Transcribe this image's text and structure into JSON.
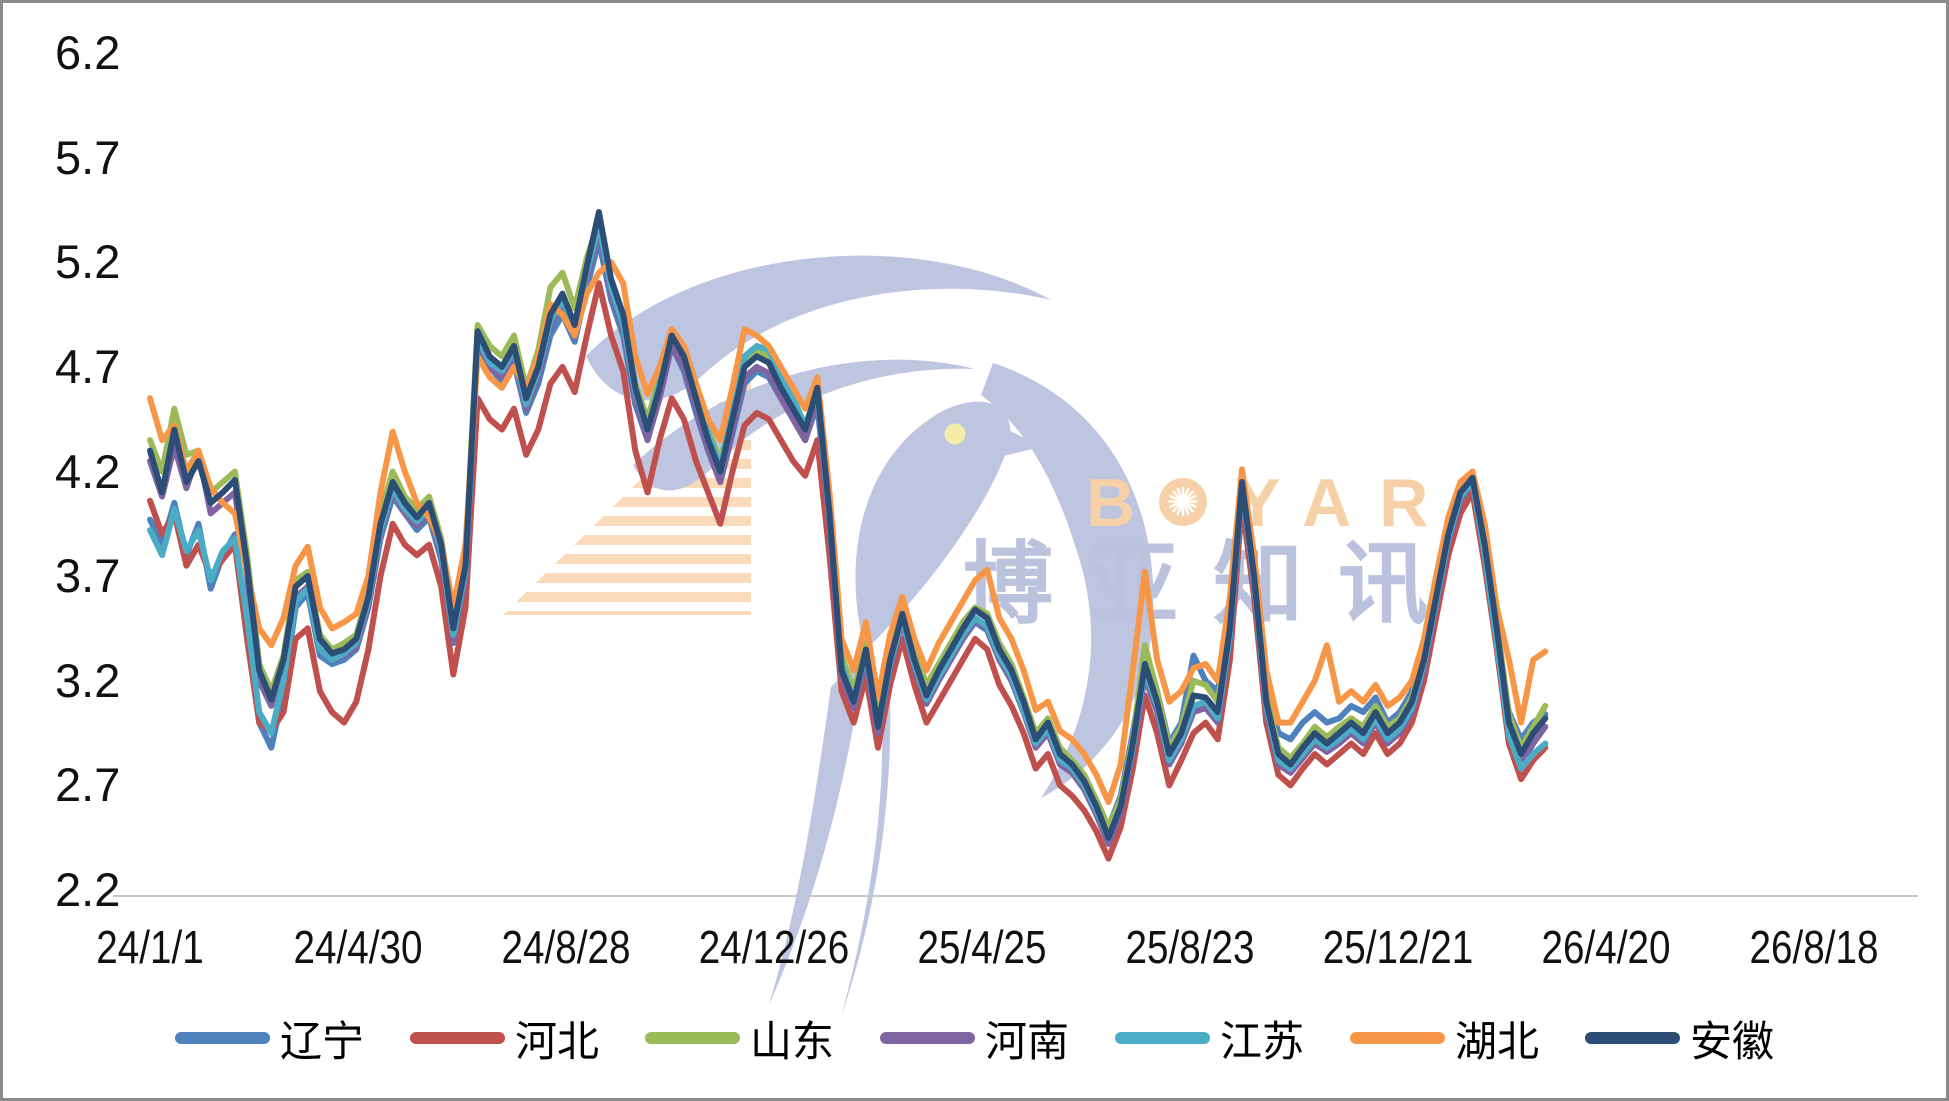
{
  "watermark": {
    "brand_b": "B",
    "brand_yar": "YAR",
    "brand_cn": "博亚知讯",
    "brand_color": "#F6CD9F",
    "cn_color": "#B3BCDA",
    "dove_color": "#B7BFDD",
    "eye_color": "#F2EC9E",
    "stripe_color": "#F8CFA3"
  },
  "axis": {
    "line_color": "#C6C6C6",
    "text_color": "#111111"
  },
  "chart_data": {
    "type": "line",
    "title": "",
    "xlabel": "",
    "ylabel": "",
    "grid": false,
    "legend_position": "bottom",
    "ylim": [
      2.2,
      6.2
    ],
    "y_ticks": [
      6.2,
      5.7,
      5.2,
      4.7,
      4.2,
      3.7,
      3.2,
      2.7,
      2.2
    ],
    "x_tick_labels": [
      "24/1/1",
      "24/4/30",
      "24/8/28",
      "24/12/26",
      "25/4/25",
      "25/8/23",
      "25/12/21",
      "26/4/20",
      "26/8/18"
    ],
    "x_tick_interval_days": 120,
    "x_axis_total_days": 960,
    "sample_interval_days": 7,
    "series_start_date": "24/1/1",
    "series": [
      {
        "name": "辽宁",
        "color": "#4F81BD",
        "values": [
          3.97,
          3.85,
          4.05,
          3.8,
          3.95,
          3.64,
          3.8,
          3.9,
          3.45,
          3.0,
          2.88,
          3.15,
          3.55,
          3.62,
          3.32,
          3.28,
          3.3,
          3.35,
          3.55,
          3.88,
          4.08,
          4.0,
          3.92,
          3.98,
          3.78,
          3.38,
          3.7,
          4.8,
          4.7,
          4.63,
          4.72,
          4.48,
          4.62,
          4.85,
          4.95,
          4.82,
          5.08,
          5.3,
          5.02,
          4.85,
          4.52,
          4.35,
          4.64,
          4.8,
          4.68,
          4.48,
          4.3,
          4.15,
          4.38,
          4.62,
          4.68,
          4.65,
          4.55,
          4.45,
          4.35,
          4.52,
          3.95,
          3.3,
          3.12,
          3.32,
          3.0,
          3.28,
          3.48,
          3.26,
          3.1,
          3.22,
          3.3,
          3.4,
          3.48,
          3.44,
          3.3,
          3.2,
          3.05,
          2.9,
          2.96,
          2.82,
          2.78,
          2.7,
          2.62,
          2.5,
          2.65,
          2.95,
          3.3,
          3.15,
          2.9,
          3.0,
          3.32,
          3.2,
          3.15,
          3.5,
          4.12,
          3.75,
          3.18,
          2.95,
          2.92,
          3.0,
          3.05,
          3.0,
          3.02,
          3.08,
          3.05,
          3.12,
          3.0,
          3.05,
          3.15,
          3.32,
          3.62,
          3.88,
          4.05,
          4.12,
          3.8,
          3.42,
          3.05,
          2.92,
          3.0,
          3.04
        ]
      },
      {
        "name": "河北",
        "color": "#C0504D",
        "values": [
          4.06,
          3.9,
          4.0,
          3.75,
          3.85,
          3.7,
          3.78,
          3.85,
          3.4,
          3.0,
          2.96,
          3.05,
          3.4,
          3.45,
          3.15,
          3.05,
          3.0,
          3.1,
          3.35,
          3.7,
          3.95,
          3.85,
          3.8,
          3.85,
          3.65,
          3.23,
          3.55,
          4.55,
          4.45,
          4.4,
          4.5,
          4.28,
          4.4,
          4.62,
          4.7,
          4.58,
          4.85,
          5.1,
          4.85,
          4.68,
          4.3,
          4.1,
          4.35,
          4.55,
          4.45,
          4.25,
          4.1,
          3.95,
          4.2,
          4.42,
          4.48,
          4.45,
          4.35,
          4.25,
          4.18,
          4.35,
          3.8,
          3.15,
          3.0,
          3.22,
          2.88,
          3.18,
          3.4,
          3.18,
          3.0,
          3.1,
          3.2,
          3.3,
          3.4,
          3.35,
          3.18,
          3.08,
          2.95,
          2.78,
          2.85,
          2.7,
          2.65,
          2.58,
          2.48,
          2.35,
          2.5,
          2.78,
          3.13,
          2.95,
          2.7,
          2.82,
          2.95,
          3.0,
          2.92,
          3.3,
          4.05,
          3.6,
          3.0,
          2.75,
          2.7,
          2.78,
          2.85,
          2.8,
          2.85,
          2.9,
          2.85,
          2.95,
          2.85,
          2.9,
          3.0,
          3.2,
          3.5,
          3.8,
          4.0,
          4.1,
          3.75,
          3.35,
          2.9,
          2.73,
          2.82,
          2.88
        ]
      },
      {
        "name": "山东",
        "color": "#9BBB59",
        "values": [
          4.35,
          4.2,
          4.5,
          4.28,
          4.3,
          4.1,
          4.15,
          4.2,
          3.8,
          3.28,
          3.15,
          3.32,
          3.68,
          3.72,
          3.42,
          3.35,
          3.38,
          3.42,
          3.62,
          4.0,
          4.2,
          4.08,
          4.02,
          4.08,
          3.88,
          3.48,
          3.8,
          4.9,
          4.8,
          4.75,
          4.85,
          4.6,
          4.78,
          5.08,
          5.15,
          4.98,
          5.22,
          5.4,
          5.1,
          4.92,
          4.62,
          4.45,
          4.65,
          4.88,
          4.78,
          4.58,
          4.4,
          4.25,
          4.48,
          4.72,
          4.78,
          4.75,
          4.62,
          4.52,
          4.42,
          4.58,
          4.02,
          3.32,
          3.15,
          3.38,
          3.02,
          3.32,
          3.55,
          3.35,
          3.18,
          3.28,
          3.38,
          3.48,
          3.55,
          3.52,
          3.38,
          3.28,
          3.12,
          2.95,
          3.02,
          2.88,
          2.82,
          2.75,
          2.63,
          2.5,
          2.63,
          2.92,
          3.37,
          3.15,
          2.88,
          2.98,
          3.2,
          3.18,
          3.1,
          3.48,
          4.18,
          3.72,
          3.12,
          2.88,
          2.83,
          2.9,
          2.98,
          2.93,
          2.98,
          3.02,
          2.98,
          3.08,
          2.98,
          3.02,
          3.12,
          3.33,
          3.64,
          3.93,
          4.12,
          4.18,
          3.88,
          3.48,
          3.04,
          2.88,
          2.98,
          3.08
        ]
      },
      {
        "name": "河南",
        "color": "#8064A2",
        "values": [
          4.25,
          4.08,
          4.32,
          4.12,
          4.29,
          4.0,
          4.05,
          4.1,
          3.7,
          3.2,
          3.08,
          3.26,
          3.6,
          3.65,
          3.35,
          3.3,
          3.32,
          3.36,
          3.56,
          3.9,
          4.1,
          4.0,
          3.94,
          4.0,
          3.8,
          3.4,
          3.7,
          4.82,
          4.7,
          4.65,
          4.75,
          4.5,
          4.65,
          4.9,
          5.0,
          4.85,
          5.12,
          5.35,
          5.05,
          4.88,
          4.55,
          4.35,
          4.55,
          4.8,
          4.7,
          4.5,
          4.3,
          4.15,
          4.4,
          4.65,
          4.7,
          4.67,
          4.55,
          4.45,
          4.35,
          4.55,
          3.95,
          3.22,
          3.07,
          3.3,
          2.95,
          3.26,
          3.48,
          3.26,
          3.09,
          3.2,
          3.3,
          3.4,
          3.49,
          3.45,
          3.3,
          3.2,
          3.05,
          2.88,
          2.95,
          2.8,
          2.76,
          2.68,
          2.56,
          2.42,
          2.57,
          2.86,
          3.22,
          3.05,
          2.8,
          2.9,
          3.05,
          3.07,
          3.0,
          3.4,
          4.12,
          3.65,
          3.05,
          2.8,
          2.76,
          2.83,
          2.9,
          2.86,
          2.9,
          2.95,
          2.9,
          3.0,
          2.9,
          2.95,
          3.05,
          3.26,
          3.56,
          3.86,
          4.06,
          4.18,
          3.82,
          3.4,
          2.96,
          2.8,
          2.9,
          2.98
        ]
      },
      {
        "name": "江苏",
        "color": "#4BACC6",
        "values": [
          3.92,
          3.8,
          4.02,
          3.82,
          3.92,
          3.68,
          3.82,
          3.88,
          3.5,
          3.05,
          2.95,
          3.2,
          3.58,
          3.64,
          3.35,
          3.3,
          3.33,
          3.38,
          3.58,
          3.92,
          4.12,
          4.02,
          3.96,
          4.02,
          3.82,
          3.42,
          3.72,
          4.84,
          4.72,
          4.68,
          4.78,
          4.52,
          4.68,
          4.92,
          5.02,
          4.88,
          5.15,
          5.38,
          5.08,
          4.9,
          4.58,
          4.4,
          4.62,
          4.86,
          4.78,
          4.58,
          4.38,
          4.22,
          4.48,
          4.75,
          4.8,
          4.78,
          4.65,
          4.55,
          4.42,
          4.58,
          3.98,
          3.28,
          3.1,
          3.33,
          2.98,
          3.28,
          3.5,
          3.28,
          3.11,
          3.22,
          3.32,
          3.42,
          3.5,
          3.46,
          3.32,
          3.22,
          3.06,
          2.9,
          2.97,
          2.82,
          2.78,
          2.7,
          2.58,
          2.45,
          2.6,
          2.88,
          3.25,
          3.08,
          2.82,
          2.92,
          3.08,
          3.1,
          3.02,
          3.42,
          4.14,
          3.68,
          3.08,
          2.82,
          2.78,
          2.85,
          2.92,
          2.88,
          2.92,
          2.97,
          2.92,
          3.02,
          2.92,
          2.97,
          3.07,
          3.28,
          3.58,
          3.88,
          4.08,
          4.15,
          3.8,
          3.38,
          2.94,
          2.78,
          2.85,
          2.9
        ]
      },
      {
        "name": "湖北",
        "color": "#F79646",
        "values": [
          4.55,
          4.35,
          4.42,
          4.2,
          4.3,
          4.12,
          4.05,
          4.0,
          3.72,
          3.45,
          3.37,
          3.5,
          3.75,
          3.84,
          3.55,
          3.45,
          3.48,
          3.52,
          3.7,
          4.1,
          4.39,
          4.2,
          4.05,
          3.98,
          3.86,
          3.55,
          3.85,
          4.75,
          4.65,
          4.6,
          4.7,
          4.6,
          4.75,
          5.0,
          4.95,
          4.85,
          5.05,
          5.15,
          5.2,
          5.1,
          4.75,
          4.57,
          4.7,
          4.88,
          4.8,
          4.62,
          4.45,
          4.35,
          4.6,
          4.88,
          4.85,
          4.8,
          4.7,
          4.6,
          4.5,
          4.65,
          4.1,
          3.4,
          3.25,
          3.48,
          3.12,
          3.42,
          3.6,
          3.4,
          3.25,
          3.38,
          3.48,
          3.58,
          3.68,
          3.73,
          3.5,
          3.4,
          3.25,
          3.06,
          3.1,
          2.96,
          2.92,
          2.85,
          2.75,
          2.62,
          2.8,
          3.25,
          3.72,
          3.3,
          3.1,
          3.15,
          3.26,
          3.28,
          3.2,
          3.6,
          4.21,
          3.8,
          3.25,
          3.0,
          3.0,
          3.1,
          3.2,
          3.37,
          3.1,
          3.15,
          3.1,
          3.18,
          3.08,
          3.12,
          3.2,
          3.4,
          3.7,
          3.98,
          4.15,
          4.2,
          3.95,
          3.55,
          3.3,
          3.0,
          3.3,
          3.34
        ]
      },
      {
        "name": "安徽",
        "color": "#2C4D75",
        "values": [
          4.3,
          4.1,
          4.4,
          4.15,
          4.25,
          4.05,
          4.1,
          4.16,
          3.75,
          3.25,
          3.11,
          3.3,
          3.65,
          3.7,
          3.4,
          3.33,
          3.35,
          3.4,
          3.6,
          3.95,
          4.15,
          4.05,
          3.98,
          4.05,
          3.85,
          3.45,
          3.75,
          4.87,
          4.75,
          4.7,
          4.8,
          4.55,
          4.7,
          4.95,
          5.05,
          4.9,
          5.18,
          5.44,
          5.12,
          4.95,
          4.6,
          4.4,
          4.6,
          4.85,
          4.75,
          4.55,
          4.35,
          4.2,
          4.45,
          4.7,
          4.75,
          4.72,
          4.6,
          4.5,
          4.4,
          4.6,
          4.0,
          3.25,
          3.1,
          3.35,
          2.98,
          3.3,
          3.52,
          3.3,
          3.13,
          3.25,
          3.35,
          3.45,
          3.54,
          3.5,
          3.35,
          3.25,
          3.1,
          2.92,
          3.0,
          2.85,
          2.8,
          2.72,
          2.6,
          2.45,
          2.6,
          2.9,
          3.28,
          3.1,
          2.85,
          2.95,
          3.13,
          3.12,
          3.05,
          3.45,
          4.15,
          3.7,
          3.1,
          2.85,
          2.8,
          2.88,
          2.95,
          2.9,
          2.95,
          3.0,
          2.95,
          3.05,
          2.95,
          3.0,
          3.1,
          3.3,
          3.6,
          3.9,
          4.1,
          4.17,
          3.85,
          3.45,
          3.0,
          2.85,
          2.95,
          3.02
        ]
      }
    ]
  }
}
